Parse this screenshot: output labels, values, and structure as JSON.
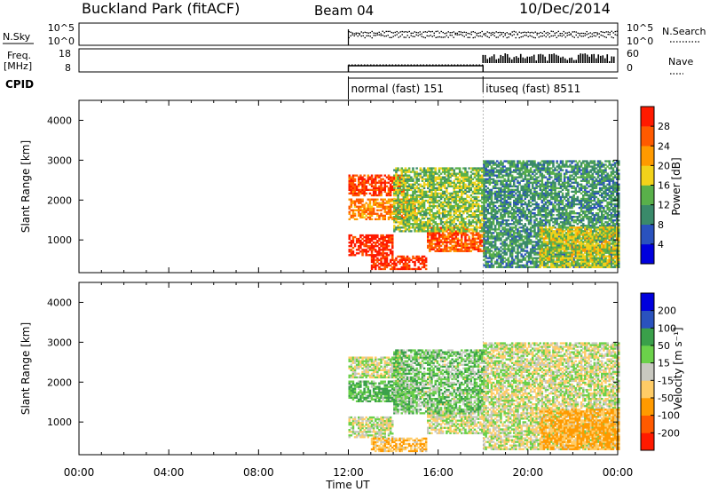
{
  "header": {
    "station": "Buckland Park (fitACF)",
    "beam": "Beam 04",
    "date": "10/Dec/2014"
  },
  "top_panels": {
    "nsky_label": "N.Sky",
    "nsearch_label": "N.Search",
    "freq_label": "Freq.",
    "freq_unit": "[MHz]",
    "nave_label": "Nave",
    "cpid_label": "CPID",
    "noise_ticks_left": [
      "10^5",
      "10^0"
    ],
    "noise_ticks_right": [
      "10^5",
      "10^0"
    ],
    "freq_ticks": [
      "18",
      "8"
    ],
    "nave_ticks": [
      "60",
      "0"
    ],
    "cpid_segments": [
      {
        "start_h": 12.0,
        "end_h": 18.0,
        "label": "normal (fast) 151"
      },
      {
        "start_h": 18.0,
        "end_h": 24.0,
        "label": "ituseq (fast) 8511"
      }
    ]
  },
  "colors": {
    "power_scale": [
      "#0000dd",
      "#2a52be",
      "#3a8a6a",
      "#59b04a",
      "#f2d21a",
      "#ff9a00",
      "#ff5a00",
      "#ff1a00"
    ],
    "velocity_scale": [
      "#ff1a00",
      "#ff5a00",
      "#ff9a00",
      "#ffcc66",
      "#c8c8c0",
      "#6bd14a",
      "#3aa04a",
      "#2a52be",
      "#0000dd"
    ]
  },
  "chart_data": [
    {
      "type": "heatmap",
      "title": "",
      "ylabel": "Slant Range [km]",
      "xlabel": "",
      "x_range_hours": [
        0,
        24
      ],
      "ylim": [
        180,
        4500
      ],
      "yticks": [
        "1000",
        "2000",
        "3000",
        "4000"
      ],
      "colorbar": {
        "label": "Power [dB]",
        "ticks": [
          "4",
          "8",
          "12",
          "16",
          "20",
          "24",
          "28"
        ],
        "range": [
          0,
          30
        ]
      },
      "observation_window_hours": [
        12.0,
        24.0
      ],
      "echo_bands": [
        {
          "t0": 12.0,
          "t1": 14.5,
          "r0": 2100,
          "r1": 2600,
          "power": 26
        },
        {
          "t0": 12.0,
          "t1": 15.0,
          "r0": 1500,
          "r1": 2000,
          "power": 22
        },
        {
          "t0": 12.0,
          "t1": 14.0,
          "r0": 600,
          "r1": 1100,
          "power": 28
        },
        {
          "t0": 13.0,
          "t1": 15.5,
          "r0": 250,
          "r1": 600,
          "power": 27
        },
        {
          "t0": 15.5,
          "t1": 18.0,
          "r0": 700,
          "r1": 1300,
          "power": 25
        },
        {
          "t0": 14.0,
          "t1": 18.0,
          "r0": 1200,
          "r1": 2800,
          "power": 14
        },
        {
          "t0": 18.0,
          "t1": 24.0,
          "r0": 300,
          "r1": 3000,
          "power": 10
        },
        {
          "t0": 20.5,
          "t1": 24.0,
          "r0": 300,
          "r1": 1300,
          "power": 16
        }
      ]
    },
    {
      "type": "heatmap",
      "title": "",
      "ylabel": "Slant Range [km]",
      "xlabel": "Time UT",
      "x_range_hours": [
        0,
        24
      ],
      "xticks": [
        "00:00",
        "04:00",
        "08:00",
        "12:00",
        "16:00",
        "20:00",
        "00:00"
      ],
      "ylim": [
        180,
        4500
      ],
      "yticks": [
        "1000",
        "2000",
        "3000",
        "4000"
      ],
      "colorbar": {
        "label": "Velocity [m s⁻¹]",
        "ticks": [
          "-200",
          "-100",
          "-50",
          "-15",
          "15",
          "50",
          "100",
          "200"
        ]
      },
      "observation_window_hours": [
        12.0,
        24.0
      ],
      "echo_bands": [
        {
          "t0": 12.0,
          "t1": 14.5,
          "r0": 2100,
          "r1": 2600,
          "velocity": 0
        },
        {
          "t0": 12.0,
          "t1": 15.0,
          "r0": 1500,
          "r1": 2000,
          "velocity": 30
        },
        {
          "t0": 12.0,
          "t1": 14.0,
          "r0": 600,
          "r1": 1100,
          "velocity": 0
        },
        {
          "t0": 13.0,
          "t1": 15.5,
          "r0": 250,
          "r1": 600,
          "velocity": -30
        },
        {
          "t0": 15.5,
          "t1": 18.0,
          "r0": 700,
          "r1": 1300,
          "velocity": 0
        },
        {
          "t0": 14.0,
          "t1": 18.0,
          "r0": 1200,
          "r1": 2800,
          "velocity": 20
        },
        {
          "t0": 18.0,
          "t1": 24.0,
          "r0": 300,
          "r1": 3000,
          "velocity": 0
        },
        {
          "t0": 20.5,
          "t1": 24.0,
          "r0": 300,
          "r1": 1300,
          "velocity": -40
        }
      ]
    }
  ]
}
